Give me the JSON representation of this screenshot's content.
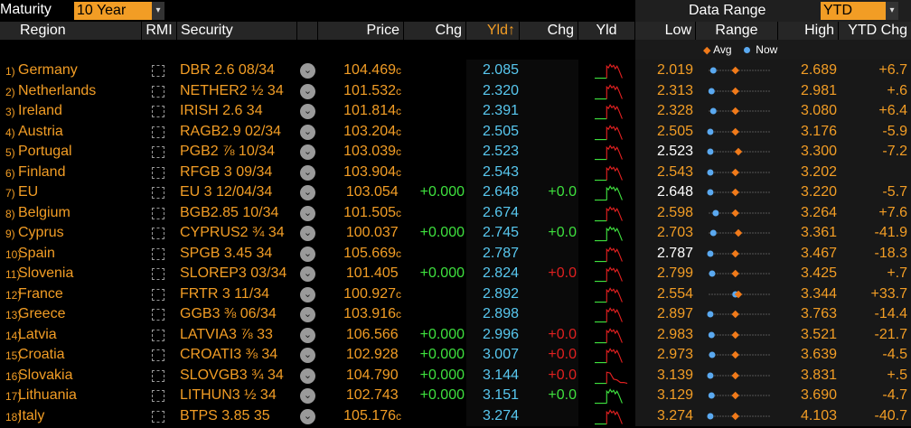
{
  "toolbar": {
    "maturity_label": "Maturity",
    "maturity_value": "10 Year",
    "data_range_label": "Data Range",
    "data_range_value": "YTD",
    "dropdown_glyph": "▾"
  },
  "columns": {
    "region": "Region",
    "rmi": "RMI",
    "security": "Security",
    "price": "Price",
    "chg": "Chg",
    "yld_sort": "Yld↑",
    "chg2": "Chg",
    "yld": "Yld",
    "low": "Low",
    "range": "Range",
    "high": "High",
    "ytd_chg": "YTD Chg"
  },
  "legend": {
    "avg": "Avg",
    "now": "Now"
  },
  "colors": {
    "accent": "#f29d25",
    "yield": "#58c8f0",
    "positive": "#3ee03e",
    "negative": "#e02020",
    "now_dot": "#5aa9f0",
    "avg_diamond": "#f07a1a"
  },
  "rows": [
    {
      "num": "1)",
      "region": "Germany",
      "security": "DBR 2.6 08/34",
      "price": "104.469",
      "price_suffix": "c",
      "chg": "",
      "yld": "2.085",
      "chg2": "",
      "chg2_sign": "",
      "low": "2.019",
      "low_now": false,
      "high": "2.689",
      "ytd": "+6.7",
      "now_pos": 0.08,
      "avg_pos": 0.45
    },
    {
      "num": "2)",
      "region": "Netherlands",
      "security": "NETHER2 ½ 34",
      "price": "101.532",
      "price_suffix": "c",
      "chg": "",
      "yld": "2.320",
      "chg2": "",
      "chg2_sign": "",
      "low": "2.313",
      "low_now": false,
      "high": "2.981",
      "ytd": "+.6",
      "now_pos": 0.05,
      "avg_pos": 0.45
    },
    {
      "num": "3)",
      "region": "Ireland",
      "security": "IRISH 2.6 34",
      "price": "101.814",
      "price_suffix": "c",
      "chg": "",
      "yld": "2.391",
      "chg2": "",
      "chg2_sign": "",
      "low": "2.328",
      "low_now": false,
      "high": "3.080",
      "ytd": "+6.4",
      "now_pos": 0.08,
      "avg_pos": 0.45
    },
    {
      "num": "4)",
      "region": "Austria",
      "security": "RAGB2.9 02/34",
      "price": "103.204",
      "price_suffix": "c",
      "chg": "",
      "yld": "2.505",
      "chg2": "",
      "chg2_sign": "",
      "low": "2.505",
      "low_now": false,
      "high": "3.176",
      "ytd": "-5.9",
      "now_pos": 0.03,
      "avg_pos": 0.45
    },
    {
      "num": "5)",
      "region": "Portugal",
      "security": "PGB2 ⅞ 10/34",
      "price": "103.039",
      "price_suffix": "c",
      "chg": "",
      "yld": "2.523",
      "chg2": "",
      "chg2_sign": "",
      "low": "2.523",
      "low_now": true,
      "high": "3.300",
      "ytd": "-7.2",
      "now_pos": 0.03,
      "avg_pos": 0.5
    },
    {
      "num": "6)",
      "region": "Finland",
      "security": "RFGB 3 09/34",
      "price": "103.904",
      "price_suffix": "c",
      "chg": "",
      "yld": "2.543",
      "chg2": "",
      "chg2_sign": "",
      "low": "2.543",
      "low_now": false,
      "high": "3.202",
      "ytd": "",
      "now_pos": 0.03,
      "avg_pos": 0.45
    },
    {
      "num": "7)",
      "region": "EU",
      "security": "EU 3 12/04/34",
      "price": "103.054",
      "price_suffix": "",
      "chg": "+0.000",
      "yld": "2.648",
      "chg2": "+0.0",
      "chg2_sign": "pos",
      "low": "2.648",
      "low_now": true,
      "high": "3.220",
      "ytd": "-5.7",
      "now_pos": 0.03,
      "avg_pos": 0.45
    },
    {
      "num": "8)",
      "region": "Belgium",
      "security": "BGB2.85 10/34",
      "price": "101.505",
      "price_suffix": "c",
      "chg": "",
      "yld": "2.674",
      "chg2": "",
      "chg2_sign": "",
      "low": "2.598",
      "low_now": false,
      "high": "3.264",
      "ytd": "+7.6",
      "now_pos": 0.12,
      "avg_pos": 0.45
    },
    {
      "num": "9)",
      "region": "Cyprus",
      "security": "CYPRUS2 ¾ 34",
      "price": "100.037",
      "price_suffix": "",
      "chg": "+0.000",
      "yld": "2.745",
      "chg2": "+0.0",
      "chg2_sign": "pos",
      "low": "2.703",
      "low_now": false,
      "high": "3.361",
      "ytd": "-41.9",
      "now_pos": 0.08,
      "avg_pos": 0.5
    },
    {
      "num": "10)",
      "region": "Spain",
      "security": "SPGB 3.45 34",
      "price": "105.669",
      "price_suffix": "c",
      "chg": "",
      "yld": "2.787",
      "chg2": "",
      "chg2_sign": "",
      "low": "2.787",
      "low_now": true,
      "high": "3.467",
      "ytd": "-18.3",
      "now_pos": 0.03,
      "avg_pos": 0.45
    },
    {
      "num": "11)",
      "region": "Slovenia",
      "security": "SLOREP3 03/34",
      "price": "101.405",
      "price_suffix": "",
      "chg": "+0.000",
      "yld": "2.824",
      "chg2": "+0.0",
      "chg2_sign": "neg",
      "low": "2.799",
      "low_now": false,
      "high": "3.425",
      "ytd": "+.7",
      "now_pos": 0.06,
      "avg_pos": 0.45
    },
    {
      "num": "12)",
      "region": "France",
      "security": "FRTR 3 11/34",
      "price": "100.927",
      "price_suffix": "c",
      "chg": "",
      "yld": "2.892",
      "chg2": "",
      "chg2_sign": "",
      "low": "2.554",
      "low_now": false,
      "high": "3.344",
      "ytd": "+33.7",
      "now_pos": 0.45,
      "avg_pos": 0.5
    },
    {
      "num": "13)",
      "region": "Greece",
      "security": "GGB3 ⅜ 06/34",
      "price": "103.916",
      "price_suffix": "c",
      "chg": "",
      "yld": "2.898",
      "chg2": "",
      "chg2_sign": "",
      "low": "2.897",
      "low_now": false,
      "high": "3.763",
      "ytd": "-14.4",
      "now_pos": 0.03,
      "avg_pos": 0.45
    },
    {
      "num": "14)",
      "region": "Latvia",
      "security": "LATVIA3 ⅞ 33",
      "price": "106.566",
      "price_suffix": "",
      "chg": "+0.000",
      "yld": "2.996",
      "chg2": "+0.0",
      "chg2_sign": "neg",
      "low": "2.983",
      "low_now": false,
      "high": "3.521",
      "ytd": "-21.7",
      "now_pos": 0.05,
      "avg_pos": 0.45
    },
    {
      "num": "15)",
      "region": "Croatia",
      "security": "CROATI3 ⅜ 34",
      "price": "102.928",
      "price_suffix": "",
      "chg": "+0.000",
      "yld": "3.007",
      "chg2": "+0.0",
      "chg2_sign": "neg",
      "low": "2.973",
      "low_now": false,
      "high": "3.639",
      "ytd": "-4.5",
      "now_pos": 0.06,
      "avg_pos": 0.45
    },
    {
      "num": "16)",
      "region": "Slovakia",
      "security": "SLOVGB3 ¾ 34",
      "price": "104.790",
      "price_suffix": "",
      "chg": "+0.000",
      "yld": "3.144",
      "chg2": "+0.0",
      "chg2_sign": "neg",
      "low": "3.139",
      "low_now": false,
      "high": "3.831",
      "ytd": "+.5",
      "now_pos": 0.03,
      "avg_pos": 0.45
    },
    {
      "num": "17)",
      "region": "Lithuania",
      "security": "LITHUN3 ½ 34",
      "price": "102.743",
      "price_suffix": "",
      "chg": "+0.000",
      "yld": "3.151",
      "chg2": "+0.0",
      "chg2_sign": "pos",
      "low": "3.129",
      "low_now": false,
      "high": "3.690",
      "ytd": "-4.7",
      "now_pos": 0.05,
      "avg_pos": 0.45
    },
    {
      "num": "18)",
      "region": "Italy",
      "security": "BTPS 3.85 35",
      "price": "105.176",
      "price_suffix": "c",
      "chg": "",
      "yld": "3.274",
      "chg2": "",
      "chg2_sign": "",
      "low": "3.274",
      "low_now": false,
      "high": "4.103",
      "ytd": "-40.7",
      "now_pos": 0.03,
      "avg_pos": 0.45
    }
  ]
}
